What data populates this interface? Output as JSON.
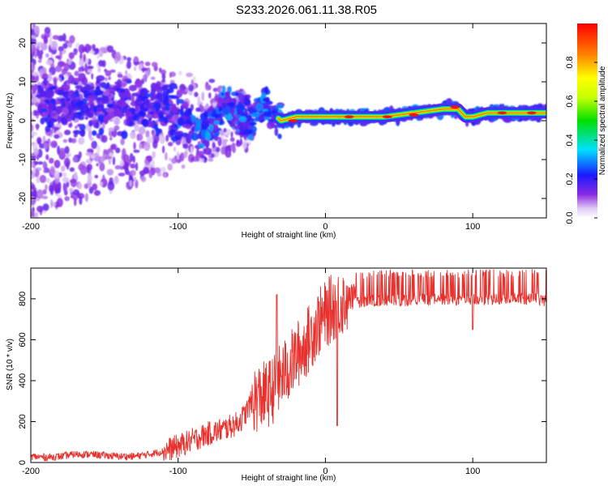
{
  "figure": {
    "title": "S233.2026.061.11.38.R05"
  },
  "chart_data": [
    {
      "type": "heatmap",
      "title": "",
      "xlabel": "Height of straight line (km)",
      "ylabel": "Frequency (Hz)",
      "xlim": [
        -200,
        150
      ],
      "ylim": [
        -25,
        25
      ],
      "xticks": [
        -200,
        -100,
        0,
        100
      ],
      "yticks": [
        -20,
        -10,
        0,
        10,
        20
      ],
      "colorbar": {
        "label": "Normalized spectral amplitude",
        "range": [
          0,
          1
        ],
        "ticks": [
          0.0,
          0.2,
          0.4,
          0.6,
          0.8
        ]
      },
      "ridge": {
        "x": [
          -190,
          -170,
          -150,
          -130,
          -115,
          -100,
          -90,
          -80,
          -70,
          -60,
          -50,
          -45,
          -40,
          -30,
          -20,
          -10,
          0,
          20,
          40,
          60,
          80,
          90,
          95,
          100,
          110,
          130,
          150
        ],
        "y": [
          4,
          4,
          4,
          4,
          3,
          1,
          -1,
          -3,
          4,
          3,
          0,
          3,
          3,
          0,
          1,
          1,
          1,
          1,
          1,
          2,
          3,
          3,
          1,
          1,
          2,
          2,
          2
        ]
      }
    },
    {
      "type": "line",
      "title": "",
      "xlabel": "Height of straight line (km)",
      "ylabel": "SNR (10 * v/v)",
      "xlim": [
        -200,
        150
      ],
      "ylim": [
        0,
        950
      ],
      "xticks": [
        -200,
        -100,
        0,
        100
      ],
      "yticks": [
        0,
        200,
        400,
        600,
        800
      ],
      "color": "#e8302c",
      "series": [
        {
          "name": "SNR",
          "x": [
            -200,
            -190,
            -180,
            -170,
            -160,
            -150,
            -140,
            -130,
            -120,
            -110,
            -100,
            -90,
            -80,
            -70,
            -60,
            -55,
            -50,
            -45,
            -40,
            -35,
            -30,
            -25,
            -20,
            -15,
            -10,
            -5,
            0,
            5,
            10,
            15,
            20,
            25,
            30,
            40,
            50,
            60,
            70,
            80,
            90,
            100,
            110,
            120,
            130,
            140,
            150
          ],
          "values": [
            30,
            25,
            30,
            40,
            40,
            35,
            30,
            30,
            40,
            55,
            80,
            110,
            140,
            160,
            190,
            230,
            300,
            320,
            330,
            360,
            420,
            460,
            520,
            560,
            620,
            680,
            720,
            760,
            780,
            800,
            810,
            815,
            820,
            825,
            820,
            825,
            825,
            830,
            825,
            825,
            830,
            825,
            830,
            830,
            820
          ]
        }
      ]
    }
  ]
}
